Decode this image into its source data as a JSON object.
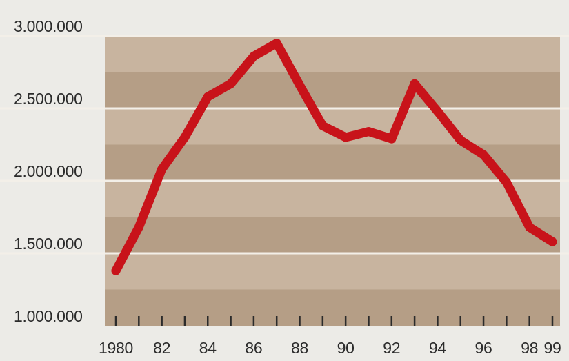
{
  "chart_data": {
    "type": "line",
    "title": "",
    "xlabel": "",
    "ylabel": "",
    "x": [
      1980,
      1981,
      1982,
      1983,
      1984,
      1985,
      1986,
      1987,
      1988,
      1989,
      1990,
      1991,
      1992,
      1993,
      1994,
      1995,
      1996,
      1997,
      1998,
      1999
    ],
    "series": [
      {
        "values": [
          1380000,
          1680000,
          2080000,
          2300000,
          2580000,
          2670000,
          2860000,
          2950000,
          2660000,
          2380000,
          2300000,
          2340000,
          2290000,
          2670000,
          2480000,
          2280000,
          2180000,
          1990000,
          1680000,
          1580000
        ]
      }
    ],
    "ylim": [
      1000000,
      3000000
    ],
    "ytick_values": [
      1000000,
      1500000,
      2000000,
      2500000,
      3000000
    ],
    "ytick_labels": [
      "1.000.000",
      "1.500.000",
      "2.000.000",
      "2.500.000",
      "3.000.000"
    ],
    "xtick_values": [
      1980,
      1982,
      1984,
      1986,
      1988,
      1990,
      1992,
      1994,
      1996,
      1998,
      1999
    ],
    "xtick_labels": [
      "1980",
      "82",
      "84",
      "86",
      "88",
      "90",
      "92",
      "94",
      "96",
      "98",
      "99"
    ],
    "grid": true,
    "line_color": "#c8131a",
    "plot_background": "#bda68d",
    "band_light_color": "#c8b49f",
    "band_dark_color": "#b59e86",
    "gridline_color": "#f3efe8"
  }
}
